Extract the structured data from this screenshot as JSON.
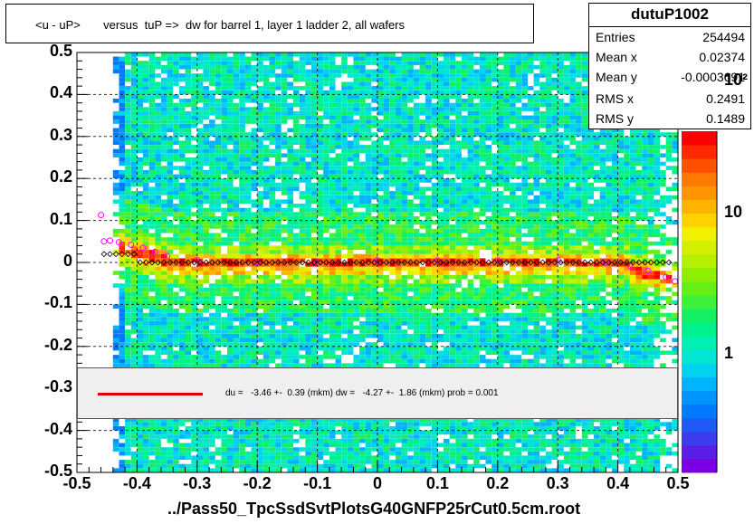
{
  "title": "<u - uP>       versus  tuP =>  dw for barrel 1, layer 1 ladder 2, all wafers",
  "stats": {
    "name": "dutuP1002",
    "rows": [
      {
        "label": "Entries",
        "value": "254494"
      },
      {
        "label": "Mean x",
        "value": "0.02374"
      },
      {
        "label": "Mean y",
        "value": "-0.0003691"
      },
      {
        "label": "RMS x",
        "value": "0.2491"
      },
      {
        "label": "RMS y",
        "value": "0.1489"
      }
    ]
  },
  "fit_text": "du =   -3.46 +-  0.39 (mkm) dw =   -4.27 +-  1.86 (mkm) prob = 0.001",
  "file_label": "../Pass50_TpcSsdSvtPlotsG40GNFP25rCut0.5cm.root",
  "colors": {
    "fit_line": "#e00000",
    "profile_marker": "#ff00ff",
    "fit_marker": "#000000"
  },
  "chart_data": {
    "type": "heatmap",
    "xlim": [
      -0.5,
      0.5
    ],
    "ylim": [
      -0.5,
      0.5
    ],
    "x_ticks": [
      "-0.5",
      "-0.4",
      "-0.3",
      "-0.2",
      "-0.1",
      "0",
      "0.1",
      "0.2",
      "0.3",
      "0.4",
      "0.5"
    ],
    "y_ticks": [
      "-0.5",
      "-0.4",
      "-0.3",
      "-0.2",
      "-0.1",
      "0",
      "0.1",
      "0.2",
      "0.3",
      "0.4",
      "0.5"
    ],
    "z_ticks": [
      "1",
      "10",
      "10²"
    ],
    "z_scale": "log",
    "grid": true,
    "profile_points": [
      {
        "x": -0.46,
        "y": 0.113
      },
      {
        "x": -0.455,
        "y": 0.05
      },
      {
        "x": -0.445,
        "y": 0.052
      },
      {
        "x": -0.43,
        "y": 0.048
      },
      {
        "x": -0.41,
        "y": 0.042
      },
      {
        "x": -0.39,
        "y": 0.035
      },
      {
        "x": -0.37,
        "y": 0.025
      },
      {
        "x": -0.35,
        "y": 0.015
      },
      {
        "x": -0.3,
        "y": 0.005
      },
      {
        "x": -0.2,
        "y": 0.0
      },
      {
        "x": -0.1,
        "y": 0.0
      },
      {
        "x": 0.0,
        "y": 0.005
      },
      {
        "x": 0.1,
        "y": 0.005
      },
      {
        "x": 0.2,
        "y": 0.005
      },
      {
        "x": 0.3,
        "y": 0.005
      },
      {
        "x": 0.38,
        "y": 0.0
      },
      {
        "x": 0.42,
        "y": -0.008
      },
      {
        "x": 0.45,
        "y": -0.02
      },
      {
        "x": 0.48,
        "y": -0.035
      },
      {
        "x": 0.495,
        "y": -0.045
      }
    ]
  }
}
